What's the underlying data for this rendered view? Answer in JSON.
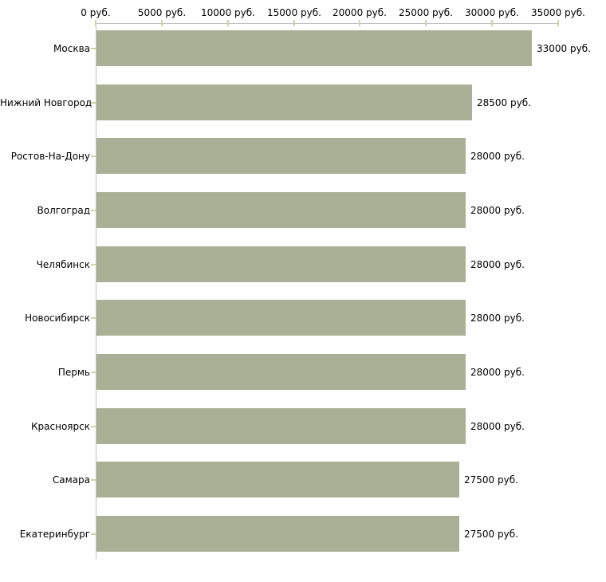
{
  "chart_data": {
    "type": "bar",
    "orientation": "horizontal",
    "title": "",
    "xlabel": "",
    "ylabel": "",
    "legend": "none",
    "grid": false,
    "categories": [
      "Москва",
      "Нижний Новгород",
      "Ростов-На-Дону",
      "Волгоград",
      "Челябинск",
      "Новосибирск",
      "Пермь",
      "Красноярск",
      "Самара",
      "Екатеринбург"
    ],
    "values": [
      33000,
      28500,
      28000,
      28000,
      28000,
      28000,
      28000,
      28000,
      27500,
      27500
    ],
    "bar_value_labels": [
      "33000 руб.",
      "28500 руб.",
      "28000 руб.",
      "28000 руб.",
      "28000 руб.",
      "28000 руб.",
      "28000 руб.",
      "28000 руб.",
      "27500 руб.",
      "27500 руб."
    ],
    "x_axis": {
      "position": "top",
      "range": [
        0,
        35000
      ],
      "tick_values": [
        0,
        5000,
        10000,
        15000,
        20000,
        25000,
        30000,
        35000
      ],
      "tick_labels": [
        "0 руб.",
        "5000 руб.",
        "10000 руб.",
        "15000 руб.",
        "20000 руб.",
        "25000 руб.",
        "30000 руб.",
        "35000 руб."
      ]
    },
    "colors": {
      "bar": "#aab095",
      "axis_line": "#c0c0c0",
      "tick_mark": "#d0d2ac",
      "text": "#000000",
      "background": "#ffffff"
    }
  }
}
